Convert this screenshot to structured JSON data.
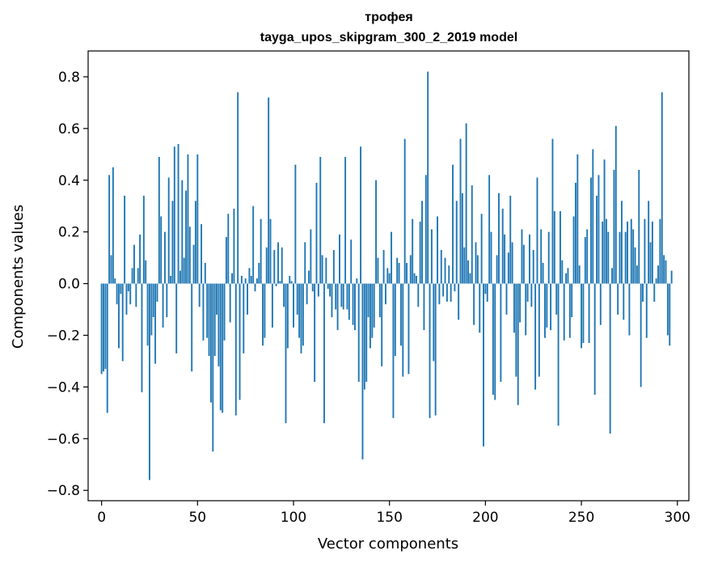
{
  "chart_data": {
    "type": "bar",
    "title": "трофея",
    "subtitle": "tayga_upos_skipgram_300_2_2019 model",
    "xlabel": "Vector components",
    "ylabel": "Components values",
    "xlim": [
      -7,
      306
    ],
    "ylim": [
      -0.84,
      0.9
    ],
    "xticks": [
      0,
      50,
      100,
      150,
      200,
      250,
      300
    ],
    "yticks": [
      -0.8,
      -0.6,
      -0.4,
      -0.2,
      0.0,
      0.2,
      0.4,
      0.6,
      0.8
    ],
    "ytick_labels": [
      "−0.8",
      "−0.6",
      "−0.4",
      "−0.2",
      "0.0",
      "0.2",
      "0.4",
      "0.6",
      "0.8"
    ],
    "bar_color": "#1f77b4",
    "legend": "none",
    "grid": false,
    "values": [
      -0.35,
      -0.34,
      -0.33,
      -0.5,
      0.42,
      0.11,
      0.45,
      0.02,
      -0.08,
      -0.25,
      -0.04,
      -0.3,
      0.34,
      -0.12,
      -0.03,
      -0.08,
      0.06,
      0.15,
      -0.09,
      0.06,
      0.19,
      -0.42,
      0.34,
      0.09,
      -0.24,
      -0.76,
      -0.2,
      -0.13,
      -0.31,
      -0.07,
      0.49,
      0.26,
      -0.17,
      0.2,
      -0.13,
      0.41,
      0.03,
      0.32,
      0.53,
      -0.27,
      0.54,
      0.05,
      0.4,
      0.1,
      0.36,
      0.5,
      0.22,
      -0.34,
      0.15,
      0.32,
      0.5,
      -0.09,
      0.23,
      -0.22,
      0.08,
      -0.21,
      -0.28,
      -0.46,
      -0.65,
      -0.28,
      -0.12,
      -0.32,
      -0.49,
      -0.5,
      -0.22,
      0.18,
      0.27,
      -0.15,
      0.04,
      0.29,
      -0.51,
      0.74,
      -0.45,
      0.03,
      -0.27,
      0.02,
      -0.12,
      0.06,
      0.03,
      0.3,
      -0.03,
      0.02,
      0.08,
      0.25,
      -0.24,
      -0.21,
      0.14,
      0.72,
      0.25,
      -0.17,
      0.13,
      -0.01,
      0.16,
      0.01,
      0.14,
      -0.09,
      -0.54,
      -0.25,
      0.03,
      0.01,
      -0.17,
      0.46,
      -0.12,
      -0.21,
      -0.27,
      -0.24,
      0.16,
      -0.08,
      0.05,
      0.21,
      -0.03,
      -0.38,
      0.39,
      -0.05,
      0.49,
      0.11,
      -0.54,
      0.1,
      -0.02,
      -0.05,
      -0.13,
      0.13,
      -0.1,
      -0.18,
      0.19,
      -0.09,
      -0.1,
      0.49,
      -0.1,
      -0.14,
      0.17,
      -0.16,
      -0.18,
      0.02,
      -0.38,
      0.53,
      -0.68,
      -0.41,
      -0.38,
      -0.13,
      -0.25,
      -0.21,
      -0.17,
      0.4,
      0.1,
      -0.13,
      -0.32,
      0.13,
      -0.08,
      0.06,
      0.04,
      0.2,
      -0.52,
      -0.28,
      0.1,
      0.08,
      -0.24,
      -0.36,
      0.56,
      0.08,
      -0.35,
      0.11,
      0.25,
      0.04,
      0.03,
      -0.09,
      0.24,
      0.32,
      -0.18,
      0.42,
      0.82,
      -0.52,
      0.21,
      -0.3,
      -0.51,
      0.26,
      -0.08,
      0.13,
      -0.05,
      0.1,
      -0.07,
      0.07,
      -0.07,
      0.46,
      -0.03,
      0.32,
      -0.14,
      0.56,
      0.35,
      0.14,
      0.62,
      0.09,
      0.04,
      0.38,
      -0.16,
      0.16,
      0.11,
      -0.19,
      0.27,
      -0.63,
      -0.04,
      -0.07,
      0.42,
      0.2,
      -0.43,
      -0.45,
      0.11,
      0.35,
      -0.38,
      0.29,
      0.19,
      -0.12,
      0.12,
      0.34,
      0.16,
      -0.19,
      -0.36,
      -0.47,
      -0.15,
      0.21,
      0.15,
      -0.2,
      -0.07,
      0.19,
      -0.09,
      0.13,
      -0.41,
      0.41,
      -0.36,
      0.21,
      0.08,
      -0.21,
      -0.17,
      0.2,
      -0.18,
      0.56,
      0.28,
      -0.12,
      -0.55,
      0.28,
      0.09,
      -0.22,
      0.04,
      0.06,
      -0.21,
      -0.13,
      0.26,
      0.39,
      0.5,
      0.07,
      -0.25,
      -0.23,
      0.18,
      0.21,
      -0.23,
      0.41,
      0.52,
      -0.43,
      0.34,
      0.42,
      -0.16,
      0.24,
      0.48,
      0.25,
      0.2,
      -0.58,
      0.06,
      0.44,
      0.61,
      -0.12,
      0.2,
      0.32,
      -0.14,
      0.2,
      0.24,
      -0.2,
      0.25,
      0.21,
      0.14,
      0.07,
      0.44,
      -0.4,
      -0.07,
      0.25,
      -0.21,
      0.32,
      0.16,
      0.24,
      -0.07,
      0.02,
      0.07,
      0.25,
      0.74,
      0.11,
      0.09,
      -0.2,
      -0.24,
      0.05
    ]
  }
}
